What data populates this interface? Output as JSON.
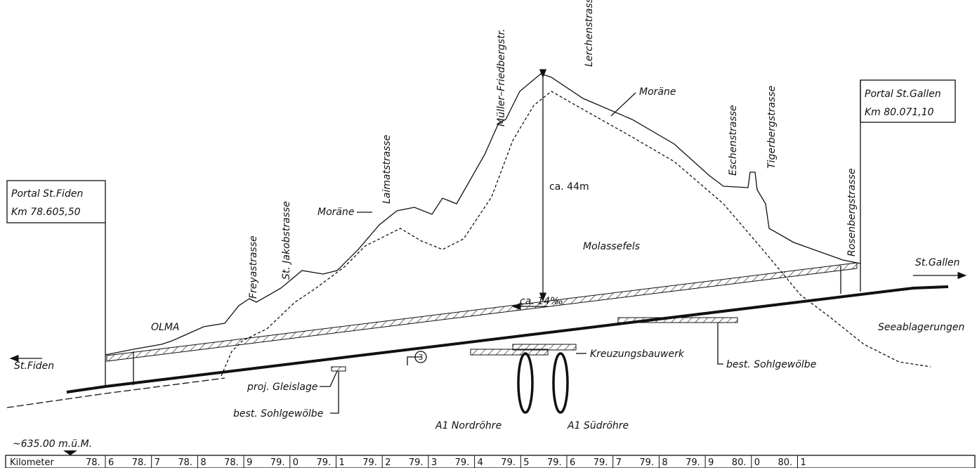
{
  "portal_left": {
    "title": "Portal St.Fiden",
    "km": "Km 78.605,50"
  },
  "portal_right": {
    "title": "Portal St.Gallen",
    "km": "Km 80.071,10"
  },
  "streets": [
    "Freyastrasse",
    "St. Jakobstrasse",
    "Laimatstrasse",
    "Müller–Friedbergstr.",
    "Lerchenstrasse",
    "Eschenstrasse",
    "Tigerbergstrasse",
    "Rosenbergstrasse"
  ],
  "labels": {
    "olma": "OLMA",
    "morane_left": "Moräne",
    "morane_right": "Moräne",
    "molassefels": "Molassefels",
    "height": "ca. 44m",
    "gradient": "ca. 14‰",
    "marker": "3",
    "kreuzung": "Kreuzungsbauwerk",
    "sohl_right": "best. Sohlgewölbe",
    "sohl_left": "best. Sohlgewölbe",
    "gleislage": "proj. Gleislage",
    "nord": "A1 Nordröhre",
    "sued": "A1 Südröhre",
    "st_fiden": "St.Fiden",
    "st_gallen": "St.Gallen",
    "see": "Seeablagerungen",
    "elevation": "~635.00 m.ü.M."
  },
  "kilometer": {
    "label": "Kilometer",
    "marks": [
      [
        "78.",
        "6"
      ],
      [
        "78.",
        "7"
      ],
      [
        "78.",
        "8"
      ],
      [
        "78.",
        "9"
      ],
      [
        "79.",
        "0"
      ],
      [
        "79.",
        "1"
      ],
      [
        "79.",
        "2"
      ],
      [
        "79.",
        "3"
      ],
      [
        "79.",
        "4"
      ],
      [
        "79.",
        "5"
      ],
      [
        "79.",
        "6"
      ],
      [
        "79.",
        "7"
      ],
      [
        "79.",
        "8"
      ],
      [
        "79.",
        "9"
      ],
      [
        "80.",
        "0"
      ],
      [
        "80.",
        "1"
      ]
    ]
  }
}
